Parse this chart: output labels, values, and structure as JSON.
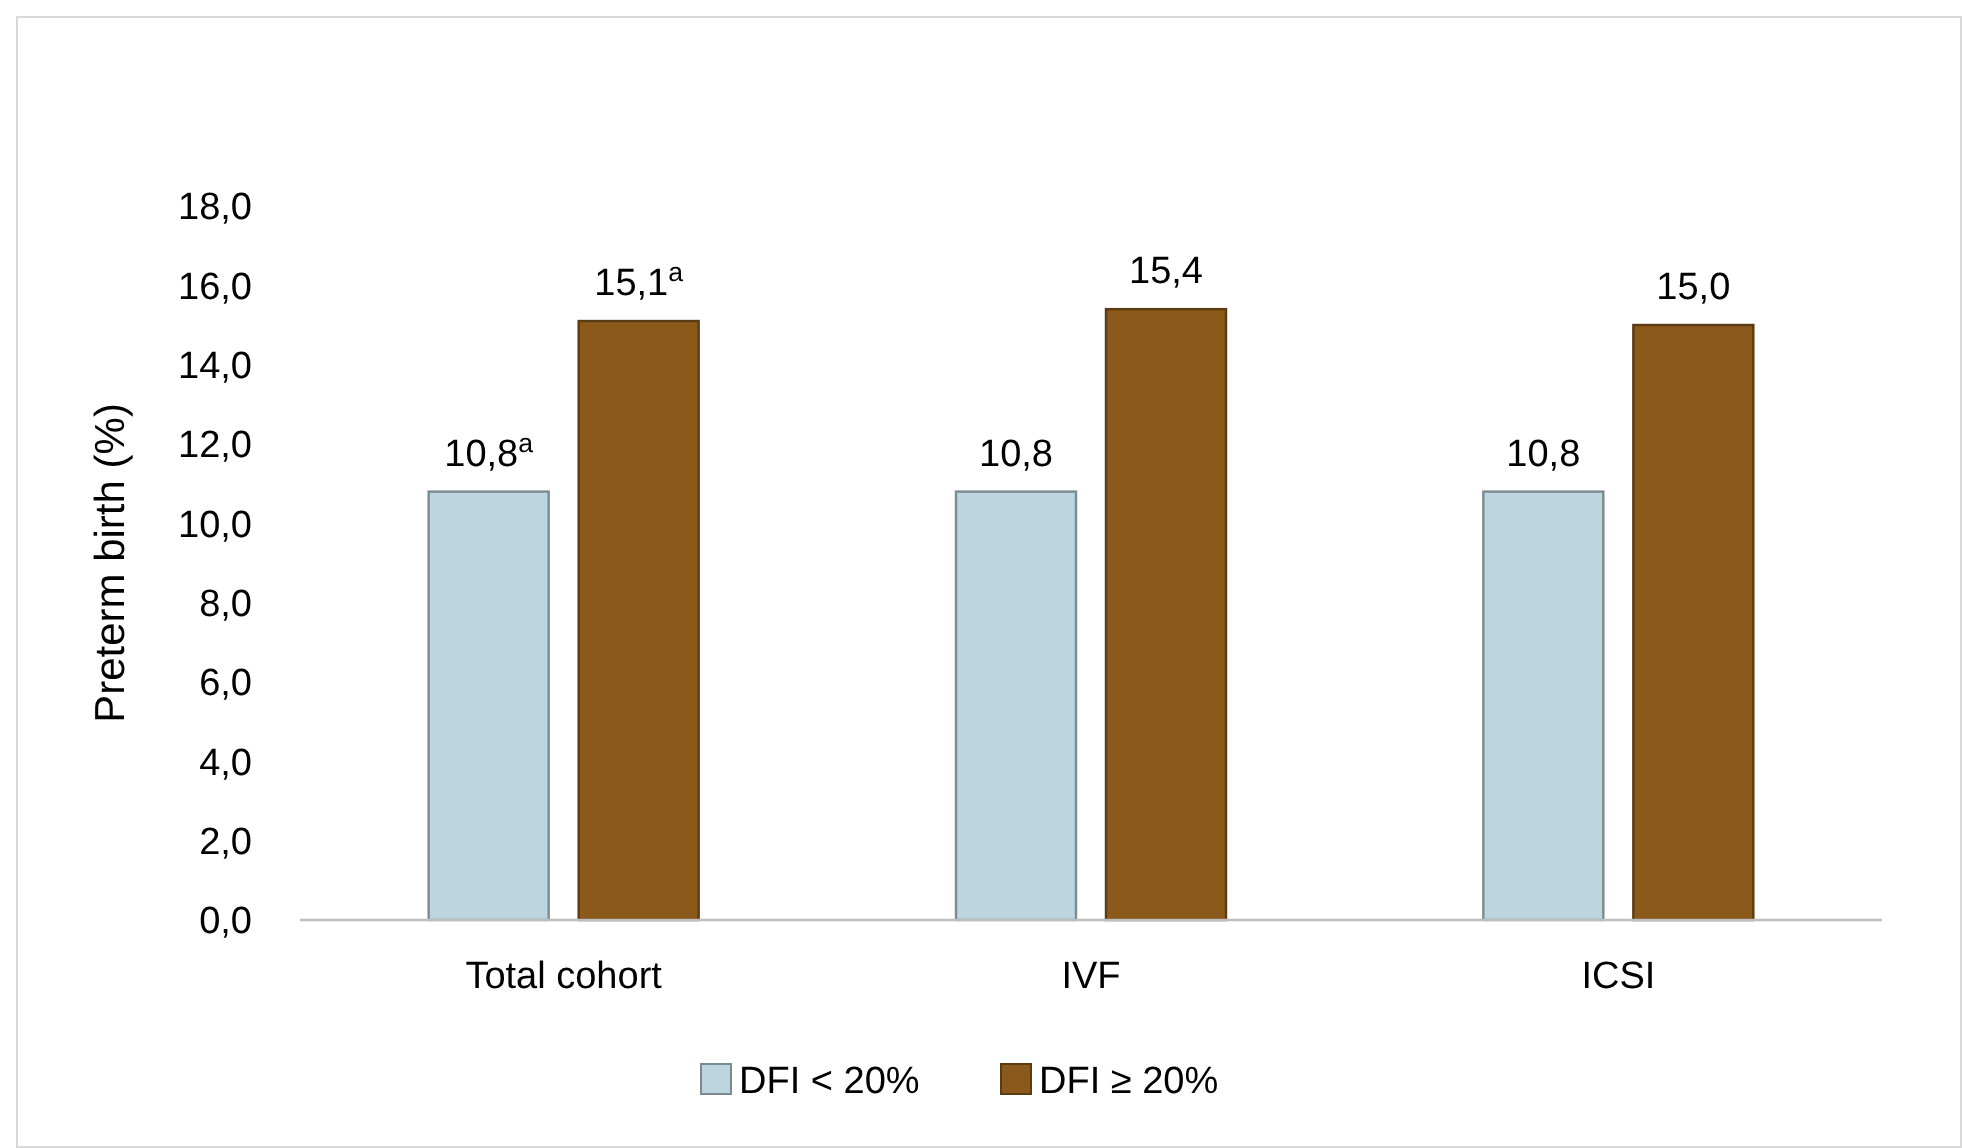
{
  "chart_data": {
    "type": "bar",
    "ylabel": "Preterm birth (%)",
    "categories": [
      "Total cohort",
      "IVF",
      "ICSI"
    ],
    "series": [
      {
        "name": "DFI < 20%",
        "color": "#bcd5df",
        "values": [
          10.8,
          10.8,
          10.8
        ],
        "value_labels": [
          "10,8$^{a}$",
          "10,8",
          "10,8"
        ]
      },
      {
        "name": "DFI ≥ 20%",
        "color": "#8b5a1a",
        "values": [
          15.1,
          15.4,
          15.0
        ],
        "value_labels": [
          "15,1$^{a}$",
          "15,4",
          "15,0"
        ]
      }
    ],
    "ylim": [
      0,
      18
    ],
    "yticks": [
      {
        "value": 0,
        "label": "0,0"
      },
      {
        "value": 2,
        "label": "2,0"
      },
      {
        "value": 4,
        "label": "4,0"
      },
      {
        "value": 6,
        "label": "6,0"
      },
      {
        "value": 8,
        "label": "8,0"
      },
      {
        "value": 10,
        "label": "10,0"
      },
      {
        "value": 12,
        "label": "12,0"
      },
      {
        "value": 14,
        "label": "14,0"
      },
      {
        "value": 16,
        "label": "16,0"
      },
      {
        "value": 18,
        "label": "18,0"
      }
    ],
    "grid": false,
    "legend": "bottom"
  }
}
